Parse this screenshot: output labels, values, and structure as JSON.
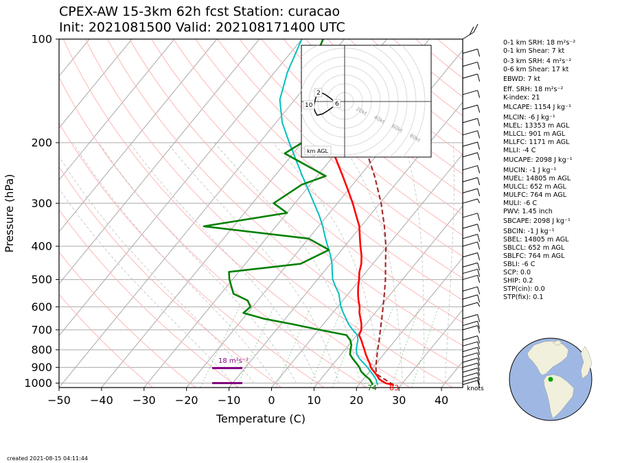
{
  "title": {
    "line1": "CPEX-AW 15-3km  62h fcst  Station: curacao",
    "line2": "Init: 2021081500  Valid: 202108171400 UTC"
  },
  "axes": {
    "xlabel": "Temperature (C)",
    "ylabel": "Pressure (hPa)",
    "xticks": [
      -50,
      -40,
      -30,
      -20,
      -10,
      0,
      10,
      20,
      30,
      40
    ],
    "xtick_labels": [
      "−50",
      "−40",
      "−30",
      "−20",
      "−10",
      "0",
      "10",
      "20",
      "30",
      "40"
    ],
    "yticks": [
      100,
      200,
      300,
      400,
      500,
      600,
      700,
      800,
      900,
      1000
    ],
    "ytick_labels": [
      "100",
      "200",
      "300",
      "400",
      "500",
      "600",
      "700",
      "800",
      "900",
      "1000"
    ]
  },
  "surface_labels": {
    "dewpoint": "74",
    "temperature": "83",
    "barb_units": "knots"
  },
  "srh_bar_label": "18 m²s⁻²",
  "hodograph": {
    "ring_labels": [
      "20kt",
      "40kt",
      "60kt",
      "80kt"
    ],
    "height_labels": [
      "2",
      "6",
      "10"
    ],
    "legend": "km AGL"
  },
  "indices": [
    "0-1 km SRH: 18 m²s⁻²",
    "0-1 km Shear: 7 kt",
    "0-3 km SRH: 4 m²s⁻²",
    "0-6 km Shear: 17 kt",
    "EBWD: 7 kt",
    "Eff. SRH: 18 m²s⁻²",
    "K-index: 21",
    "MLCAPE: 1154 J kg⁻¹",
    "MLCIN: -6 J kg⁻¹",
    "MLEL: 13353 m AGL",
    "MLLCL: 901 m AGL",
    "MLLFC: 1171 m AGL",
    "MLLI: -4 C",
    "MUCAPE: 2098 J kg⁻¹",
    "MUCIN: -1 J kg⁻¹",
    "MUEL: 14805 m AGL",
    "MULCL: 652 m AGL",
    "MULFC: 764 m AGL",
    "MULI: -6 C",
    "PWV: 1.45 inch",
    "SBCAPE: 2098 J kg⁻¹",
    "SBCIN: -1 J kg⁻¹",
    "SBEL: 14805 m AGL",
    "SBLCL: 652 m AGL",
    "SBLFC: 764 m AGL",
    "SBLI: -6 C",
    "SCP: 0.0",
    "SHIP: 0.2",
    "STP(cin): 0.0",
    "STP(fix): 0.1"
  ],
  "footer": "created 2021-08-15 04:11:44",
  "colors": {
    "temperature": "#ff0000",
    "dewpoint": "#008000",
    "wetbulb": "#00bfbf",
    "parcel": "#a52a2a",
    "srh_bar": "#800080",
    "isotherm": "#a9a9a9",
    "dry_adiabat": "#ffb6b6",
    "moist_adiabat": "#c0c0c0",
    "mixing_ratio": "#4caf50",
    "globe_ocean": "#9fb8e3",
    "globe_land": "#f0f0dc",
    "station_dot": "#00a000"
  },
  "chart_data": {
    "type": "line",
    "x_unit": "C",
    "y_unit": "hPa",
    "y_scale": "log",
    "xlim": [
      -50,
      45
    ],
    "ylim": [
      1030,
      100
    ],
    "skew": true,
    "grid": true,
    "series": [
      {
        "key": "temperature",
        "points": [
          [
            1013,
            28.3
          ],
          [
            1000,
            26.0
          ],
          [
            975,
            23.8
          ],
          [
            950,
            22.5
          ],
          [
            925,
            21.0
          ],
          [
            900,
            19.5
          ],
          [
            875,
            18.4
          ],
          [
            850,
            17.1
          ],
          [
            825,
            15.8
          ],
          [
            800,
            14.6
          ],
          [
            775,
            13.3
          ],
          [
            750,
            12.0
          ],
          [
            725,
            10.5
          ],
          [
            700,
            10.0
          ],
          [
            675,
            9.0
          ],
          [
            650,
            7.7
          ],
          [
            625,
            6.3
          ],
          [
            600,
            5.2
          ],
          [
            575,
            3.7
          ],
          [
            550,
            2.3
          ],
          [
            525,
            1.0
          ],
          [
            500,
            -0.2
          ],
          [
            475,
            -1.6
          ],
          [
            450,
            -2.7
          ],
          [
            425,
            -4.3
          ],
          [
            400,
            -6.3
          ],
          [
            375,
            -8.3
          ],
          [
            350,
            -10.4
          ],
          [
            325,
            -13.3
          ],
          [
            300,
            -16.4
          ],
          [
            275,
            -20.0
          ],
          [
            250,
            -24.0
          ],
          [
            225,
            -28.5
          ],
          [
            200,
            -33.6
          ],
          [
            175,
            -39.0
          ],
          [
            150,
            -45.0
          ]
        ]
      },
      {
        "key": "dewpoint",
        "points": [
          [
            1013,
            23.3
          ],
          [
            1000,
            22.8
          ],
          [
            975,
            21.5
          ],
          [
            950,
            19.7
          ],
          [
            925,
            18.0
          ],
          [
            900,
            16.8
          ],
          [
            875,
            15.3
          ],
          [
            850,
            13.6
          ],
          [
            825,
            12.1
          ],
          [
            800,
            11.3
          ],
          [
            775,
            10.6
          ],
          [
            750,
            9.4
          ],
          [
            725,
            7.5
          ],
          [
            700,
            0.2
          ],
          [
            675,
            -7.0
          ],
          [
            650,
            -15.0
          ],
          [
            625,
            -21.0
          ],
          [
            600,
            -20.5
          ],
          [
            575,
            -22.4
          ],
          [
            550,
            -27.0
          ],
          [
            500,
            -30.7
          ],
          [
            475,
            -32.3
          ],
          [
            450,
            -17.0
          ],
          [
            410,
            -13.0
          ],
          [
            380,
            -20.0
          ],
          [
            350,
            -47.0
          ],
          [
            320,
            -30.0
          ],
          [
            300,
            -35.0
          ],
          [
            265,
            -32.0
          ],
          [
            250,
            -28.0
          ],
          [
            215,
            -42.0
          ],
          [
            200,
            -40.0
          ],
          [
            175,
            -41.0
          ],
          [
            150,
            -45.0
          ],
          [
            130,
            -50.0
          ],
          [
            115,
            -53.0
          ],
          [
            100,
            -55.0
          ]
        ]
      },
      {
        "key": "wetbulb",
        "points": [
          [
            1013,
            24.5
          ],
          [
            1000,
            24.0
          ],
          [
            975,
            23.0
          ],
          [
            950,
            21.7
          ],
          [
            925,
            20.2
          ],
          [
            900,
            18.7
          ],
          [
            875,
            17.0
          ],
          [
            850,
            15.2
          ],
          [
            825,
            13.7
          ],
          [
            800,
            12.7
          ],
          [
            775,
            11.9
          ],
          [
            750,
            11.2
          ],
          [
            725,
            10.1
          ],
          [
            700,
            8.0
          ],
          [
            675,
            6.0
          ],
          [
            650,
            4.3
          ],
          [
            625,
            2.5
          ],
          [
            600,
            0.8
          ],
          [
            575,
            -0.7
          ],
          [
            550,
            -2.2
          ],
          [
            525,
            -4.3
          ],
          [
            500,
            -6.4
          ],
          [
            475,
            -8.0
          ],
          [
            450,
            -9.6
          ],
          [
            425,
            -11.6
          ],
          [
            400,
            -14.0
          ],
          [
            375,
            -16.5
          ],
          [
            350,
            -19.0
          ],
          [
            325,
            -22.0
          ],
          [
            300,
            -25.5
          ],
          [
            275,
            -29.3
          ],
          [
            250,
            -33.5
          ],
          [
            225,
            -38.0
          ],
          [
            200,
            -43.0
          ],
          [
            175,
            -48.5
          ],
          [
            150,
            -53.5
          ],
          [
            125,
            -57.0
          ],
          [
            100,
            -60.0
          ]
        ]
      },
      {
        "key": "parcel",
        "points": [
          [
            1013,
            28.3
          ],
          [
            940,
            22.0
          ],
          [
            900,
            20.7
          ],
          [
            850,
            19.2
          ],
          [
            800,
            17.7
          ],
          [
            750,
            16.2
          ],
          [
            700,
            14.5
          ],
          [
            650,
            12.7
          ],
          [
            600,
            10.7
          ],
          [
            550,
            8.5
          ],
          [
            500,
            6.0
          ],
          [
            450,
            3.0
          ],
          [
            400,
            -0.3
          ],
          [
            350,
            -4.5
          ],
          [
            300,
            -9.7
          ],
          [
            250,
            -16.5
          ],
          [
            200,
            -25.5
          ],
          [
            150,
            -38.0
          ],
          [
            120,
            -47.0
          ]
        ]
      }
    ],
    "srh_bars_hPa": [
      904,
      1000
    ],
    "wind_barbs": [
      {
        "p": 100,
        "spd": 25
      },
      {
        "p": 110,
        "spd": 10
      },
      {
        "p": 120,
        "spd": 10
      },
      {
        "p": 130,
        "spd": 10
      },
      {
        "p": 145,
        "spd": 10
      },
      {
        "p": 160,
        "spd": 10
      },
      {
        "p": 175,
        "spd": 10
      },
      {
        "p": 190,
        "spd": 10
      },
      {
        "p": 205,
        "spd": 10
      },
      {
        "p": 220,
        "spd": 10
      },
      {
        "p": 240,
        "spd": 10
      },
      {
        "p": 260,
        "spd": 10
      },
      {
        "p": 280,
        "spd": 10
      },
      {
        "p": 300,
        "spd": 5
      },
      {
        "p": 330,
        "spd": 10
      },
      {
        "p": 355,
        "spd": 10
      },
      {
        "p": 380,
        "spd": 10
      },
      {
        "p": 400,
        "spd": 10
      },
      {
        "p": 430,
        "spd": 10
      },
      {
        "p": 460,
        "spd": 10
      },
      {
        "p": 480,
        "spd": 10
      },
      {
        "p": 500,
        "spd": 10
      },
      {
        "p": 540,
        "spd": 10
      },
      {
        "p": 570,
        "spd": 10
      },
      {
        "p": 600,
        "spd": 5
      },
      {
        "p": 650,
        "spd": 10
      },
      {
        "p": 680,
        "spd": 10
      },
      {
        "p": 700,
        "spd": 10
      },
      {
        "p": 750,
        "spd": 10
      },
      {
        "p": 780,
        "spd": 10
      },
      {
        "p": 810,
        "spd": 10
      },
      {
        "p": 840,
        "spd": 10
      },
      {
        "p": 870,
        "spd": 10
      },
      {
        "p": 900,
        "spd": 10
      },
      {
        "p": 930,
        "spd": 10
      },
      {
        "p": 960,
        "spd": 10
      },
      {
        "p": 990,
        "spd": 10
      },
      {
        "p": 1010,
        "spd": 10
      }
    ]
  }
}
